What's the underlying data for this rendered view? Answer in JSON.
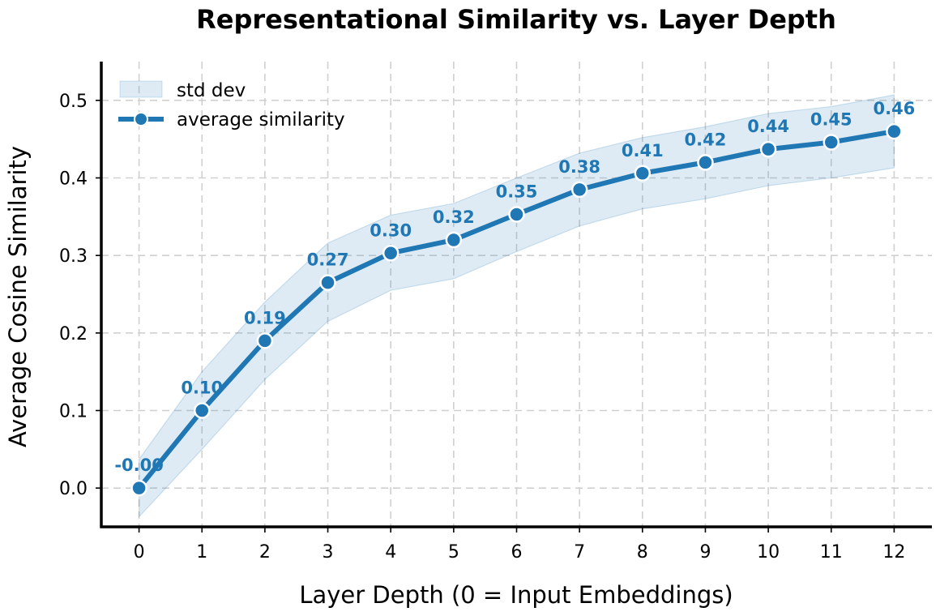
{
  "chart_data": {
    "type": "line",
    "title": "Representational Similarity vs. Layer Depth",
    "xlabel": "Layer Depth (0 = Input Embeddings)",
    "ylabel": "Average Cosine Similarity",
    "x": [
      0,
      1,
      2,
      3,
      4,
      5,
      6,
      7,
      8,
      9,
      10,
      11,
      12
    ],
    "xlim": [
      -0.6,
      12.6
    ],
    "ylim": [
      -0.05,
      0.55
    ],
    "xticks": [
      "0",
      "1",
      "2",
      "3",
      "4",
      "5",
      "6",
      "7",
      "8",
      "9",
      "10",
      "11",
      "12"
    ],
    "yticks": [
      0.0,
      0.1,
      0.2,
      0.3,
      0.4,
      0.5
    ],
    "ytick_labels": [
      "0.0",
      "0.1",
      "0.2",
      "0.3",
      "0.4",
      "0.5"
    ],
    "grid": true,
    "legend_position": "top-left",
    "series": [
      {
        "name": "average similarity",
        "values": [
          0.0,
          0.1,
          0.19,
          0.265,
          0.303,
          0.32,
          0.353,
          0.385,
          0.406,
          0.42,
          0.437,
          0.446,
          0.46
        ],
        "labels": [
          "-0.00",
          "0.10",
          "0.19",
          "0.27",
          "0.30",
          "0.32",
          "0.35",
          "0.38",
          "0.41",
          "0.42",
          "0.44",
          "0.45",
          "0.46"
        ],
        "color": "#1f77b4"
      }
    ],
    "band": {
      "name": "std dev",
      "lower": [
        -0.037,
        0.05,
        0.14,
        0.215,
        0.255,
        0.27,
        0.305,
        0.338,
        0.36,
        0.373,
        0.39,
        0.4,
        0.413
      ],
      "upper": [
        0.037,
        0.15,
        0.24,
        0.316,
        0.352,
        0.367,
        0.4,
        0.432,
        0.452,
        0.466,
        0.483,
        0.492,
        0.507
      ],
      "color": "#1f77b4",
      "opacity": 0.15
    },
    "legend": [
      {
        "label": "std dev",
        "kind": "band"
      },
      {
        "label": "average similarity",
        "kind": "line"
      }
    ]
  }
}
